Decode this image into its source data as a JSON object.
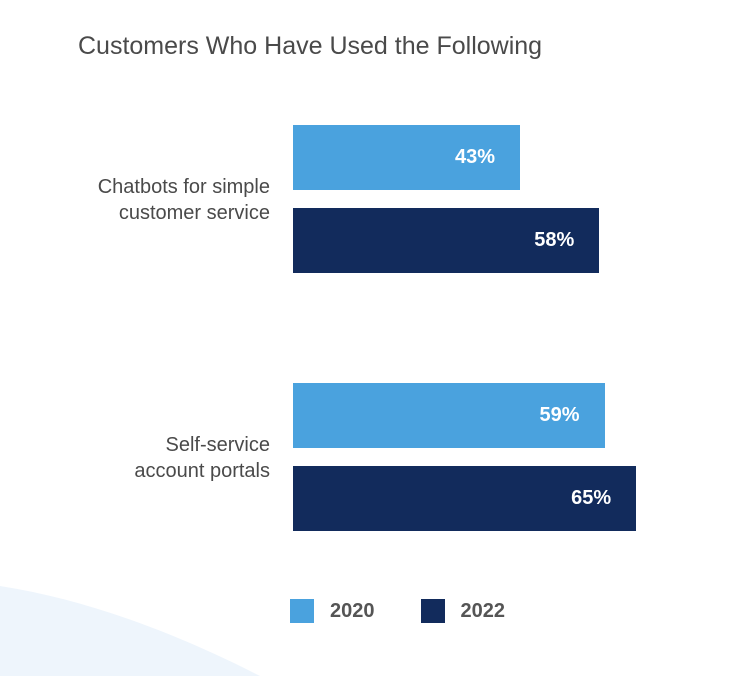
{
  "chart_data": {
    "type": "bar",
    "orientation": "horizontal",
    "title": "Customers Who Have Used the Following",
    "categories": [
      [
        "Chatbots for simple",
        "customer service"
      ],
      [
        "Self-service",
        "account portals"
      ]
    ],
    "series": [
      {
        "name": "2020",
        "color": "#4aa2de",
        "values": [
          43,
          59
        ],
        "labels": [
          "43%",
          "59%"
        ]
      },
      {
        "name": "2022",
        "color": "#122b5c",
        "values": [
          58,
          65
        ],
        "labels": [
          "58%",
          "65%"
        ]
      }
    ],
    "xlim": [
      0,
      100
    ],
    "unit": "%",
    "legend_position": "bottom"
  }
}
